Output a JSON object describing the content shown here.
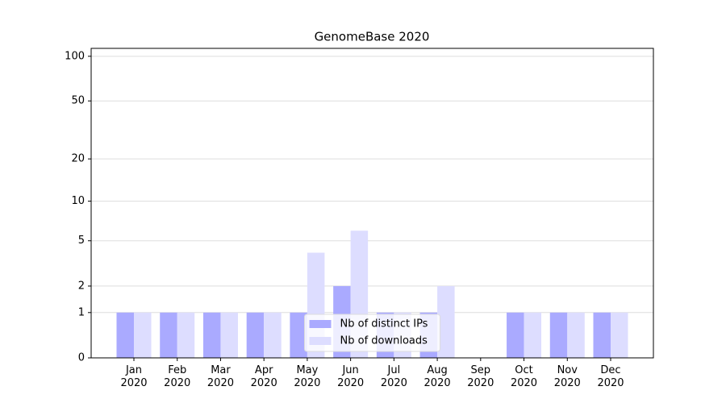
{
  "chart_data": {
    "type": "bar",
    "title": "GenomeBase 2020",
    "categories": [
      "Jan\n2020",
      "Feb\n2020",
      "Mar\n2020",
      "Apr\n2020",
      "May\n2020",
      "Jun\n2020",
      "Jul\n2020",
      "Aug\n2020",
      "Sep\n2020",
      "Oct\n2020",
      "Nov\n2020",
      "Dec\n2020"
    ],
    "series": [
      {
        "name": "Nb of distinct IPs",
        "color": "#aaaaff",
        "values": [
          1,
          1,
          1,
          1,
          1,
          2,
          1,
          1,
          0,
          1,
          1,
          1
        ]
      },
      {
        "name": "Nb of downloads",
        "color": "#ddddff",
        "values": [
          1,
          1,
          1,
          1,
          4,
          6,
          1,
          2,
          0,
          1,
          1,
          1
        ]
      }
    ],
    "yscale": "log1p",
    "ylim": [
      0,
      113
    ],
    "yticks": [
      0,
      1,
      2,
      5,
      10,
      20,
      50,
      100
    ],
    "grid": true,
    "legend": "lower center"
  }
}
